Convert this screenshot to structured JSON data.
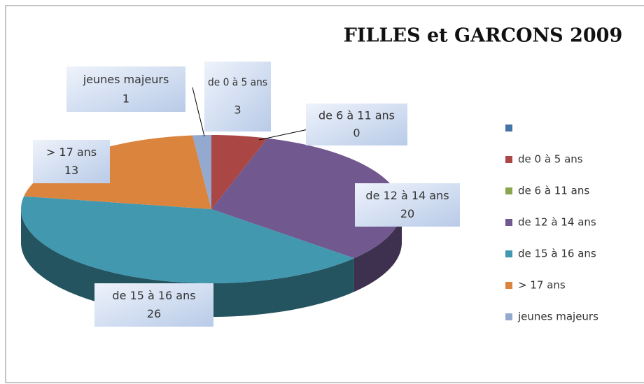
{
  "chart_data": {
    "type": "pie",
    "title": "FILLES et GARCONS 2009",
    "categories": [
      null,
      "de 0 à 5 ans",
      "de 6 à 11 ans",
      "de 12 à 14 ans",
      "de 15 à 16 ans",
      "> 17 ans",
      "jeunes majeurs"
    ],
    "values": [
      null,
      3,
      0,
      20,
      26,
      13,
      1
    ],
    "colors": [
      "#4572a7",
      "#aa4643",
      "#89a54e",
      "#71588f",
      "#4198af",
      "#db843d",
      "#93a9cf"
    ],
    "legend": "right"
  }
}
